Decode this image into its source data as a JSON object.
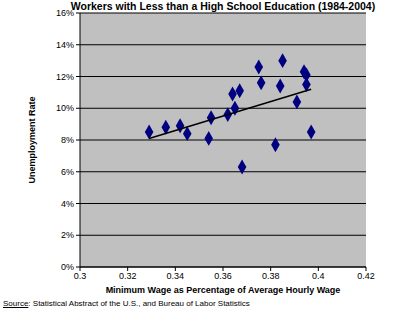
{
  "chart_data": {
    "type": "scatter",
    "title": "Workers with Less than a High School Education (1984-2004)",
    "x_label": "Minimum Wage as Percentage of Average Hourly Wage",
    "y_label": "Unemployment Rate",
    "annotations": [
      "Source: Statistical Abstract of the U.S., and Bureau of Labor Statistics"
    ],
    "x": [
      0.329,
      0.336,
      0.342,
      0.345,
      0.354,
      0.355,
      0.362,
      0.364,
      0.365,
      0.367,
      0.368,
      0.375,
      0.376,
      0.382,
      0.384,
      0.385,
      0.391,
      0.394,
      0.395,
      0.395,
      0.397
    ],
    "values": [
      8.5,
      8.8,
      8.9,
      8.4,
      8.1,
      9.4,
      9.6,
      10.9,
      10.0,
      11.1,
      6.3,
      12.6,
      11.6,
      7.7,
      11.4,
      13.0,
      10.4,
      12.3,
      12.1,
      11.5,
      8.5
    ],
    "color": "#000080",
    "marker": "diamond",
    "trend": {
      "x": [
        0.329,
        0.397
      ],
      "values": [
        8.1,
        11.2
      ],
      "color": "#000000"
    },
    "xlim": [
      0.3,
      0.42
    ],
    "xticks": [
      0.3,
      0.32,
      0.34,
      0.36,
      0.38,
      0.4,
      0.42
    ],
    "ylim": [
      0,
      16
    ],
    "yticks": [
      {
        "value": 0,
        "label": "0%"
      },
      {
        "value": 2,
        "label": "2%"
      },
      {
        "value": 4,
        "label": "4%"
      },
      {
        "value": 6,
        "label": "6%"
      },
      {
        "value": 8,
        "label": "8%"
      },
      {
        "value": 10,
        "label": "10%"
      },
      {
        "value": 12,
        "label": "12%"
      },
      {
        "value": 14,
        "label": "14%"
      },
      {
        "value": 16,
        "label": "16%"
      }
    ],
    "grid": true
  }
}
